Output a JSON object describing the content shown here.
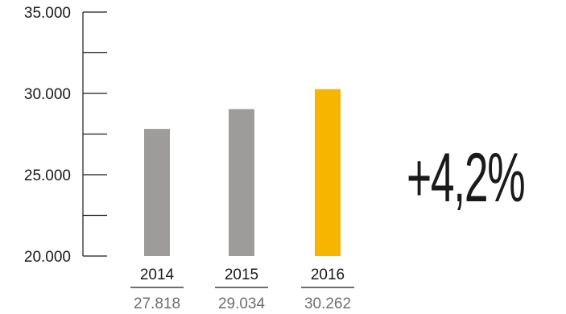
{
  "chart_data": {
    "type": "bar",
    "categories": [
      "2014",
      "2015",
      "2016"
    ],
    "values": [
      27818,
      29034,
      30262
    ],
    "value_labels": [
      "27.818",
      "29.034",
      "30.262"
    ],
    "colors": [
      "#9d9c9a",
      "#9d9c9a",
      "#f8b500"
    ],
    "ylim": [
      20000,
      35000
    ],
    "y_ticks": [
      20000,
      22500,
      25000,
      27500,
      30000,
      32500,
      35000
    ],
    "y_tick_labels": [
      "20.000",
      "",
      "25.000",
      "",
      "30.000",
      "",
      "35.000"
    ],
    "annotation": "+4,2%",
    "title": "",
    "xlabel": "",
    "ylabel": "",
    "grid": false,
    "legend": "none"
  }
}
